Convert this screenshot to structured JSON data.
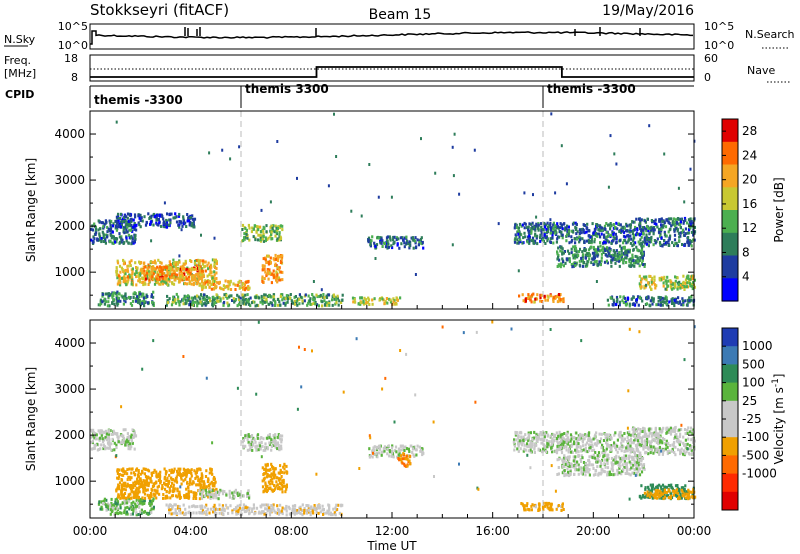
{
  "header": {
    "station": "Stokkseyri (fitACF)",
    "beam": "Beam 15",
    "date": "19/May/2016"
  },
  "noise_panel": {
    "left_label": "N.Sky",
    "right_label": "N.Search",
    "left_ticks": [
      "10^5",
      "10^0"
    ],
    "right_ticks": [
      "10^5",
      "10^0"
    ]
  },
  "freq_panel": {
    "left_label_line1": "Freq.",
    "left_label_line2": "[MHz]",
    "left_ticks": [
      "18",
      "8"
    ],
    "right_label": "Nave",
    "right_ticks": [
      "60",
      "0"
    ]
  },
  "cpid": {
    "label": "CPID",
    "segments": [
      {
        "label": "themis -3300",
        "start_hour": 0
      },
      {
        "label": "themis 3300",
        "start_hour": 6
      },
      {
        "label": "themis -3300",
        "start_hour": 18
      }
    ]
  },
  "colors": {
    "power_scale": [
      "#0000ff",
      "#1e3ca0",
      "#2e7d5a",
      "#4caf50",
      "#c8c832",
      "#f5a623",
      "#ff6a00",
      "#e00000"
    ],
    "velocity_scale": [
      "#1f3cb4",
      "#3c7ab4",
      "#2e8b57",
      "#5ab43c",
      "#c8c8c8",
      "#c8c8c8",
      "#f0a000",
      "#ff6a00",
      "#ff2a00",
      "#e00000"
    ]
  },
  "chart_data": [
    {
      "type": "heatmap",
      "name": "power",
      "ylabel": "Slant Range [km]",
      "xlabel": "",
      "xlim": [
        0,
        24
      ],
      "ylim": [
        200,
        4500
      ],
      "yticks": [
        "1000",
        "2000",
        "3000",
        "4000"
      ],
      "colorbar": {
        "label": "Power [dB]",
        "ticks": [
          "4",
          "8",
          "12",
          "16",
          "20",
          "24",
          "28"
        ],
        "range": [
          0,
          30
        ]
      },
      "regions": [
        {
          "x": [
            0.0,
            1.8
          ],
          "y": [
            1650,
            2150
          ],
          "value": 8
        },
        {
          "x": [
            1.0,
            4.2
          ],
          "y": [
            2000,
            2300
          ],
          "value": 6
        },
        {
          "x": [
            0.3,
            2.5
          ],
          "y": [
            300,
            600
          ],
          "value": 10
        },
        {
          "x": [
            1.0,
            5.0
          ],
          "y": [
            750,
            1300
          ],
          "value": 18
        },
        {
          "x": [
            2.0,
            4.5
          ],
          "y": [
            850,
            1150
          ],
          "value": 22
        },
        {
          "x": [
            4.3,
            6.3
          ],
          "y": [
            650,
            850
          ],
          "value": 20
        },
        {
          "x": [
            3.0,
            10.0
          ],
          "y": [
            300,
            550
          ],
          "value": 12
        },
        {
          "x": [
            6.0,
            7.6
          ],
          "y": [
            1700,
            2050
          ],
          "value": 14
        },
        {
          "x": [
            6.8,
            7.6
          ],
          "y": [
            800,
            1400
          ],
          "value": 22
        },
        {
          "x": [
            10.4,
            12.3
          ],
          "y": [
            330,
            480
          ],
          "value": 16
        },
        {
          "x": [
            11.0,
            13.2
          ],
          "y": [
            1550,
            1800
          ],
          "value": 8
        },
        {
          "x": [
            17.0,
            18.8
          ],
          "y": [
            380,
            560
          ],
          "value": 22
        },
        {
          "x": [
            16.8,
            21.5
          ],
          "y": [
            1650,
            2100
          ],
          "value": 8
        },
        {
          "x": [
            18.5,
            22.0
          ],
          "y": [
            1150,
            1600
          ],
          "value": 10
        },
        {
          "x": [
            21.5,
            24.0
          ],
          "y": [
            1600,
            2200
          ],
          "value": 8
        },
        {
          "x": [
            21.8,
            24.0
          ],
          "y": [
            650,
            950
          ],
          "value": 16
        },
        {
          "x": [
            20.5,
            24.0
          ],
          "y": [
            300,
            500
          ],
          "value": 8
        }
      ]
    },
    {
      "type": "heatmap",
      "name": "velocity",
      "ylabel": "Slant Range [km]",
      "xlabel": "Time UT",
      "xlim": [
        0,
        24
      ],
      "ylim": [
        200,
        4500
      ],
      "xticks": [
        "00:00",
        "04:00",
        "08:00",
        "12:00",
        "16:00",
        "20:00",
        "00:00"
      ],
      "yticks": [
        "1000",
        "2000",
        "3000",
        "4000"
      ],
      "colorbar": {
        "label": "Velocity [m s^-1]",
        "ticks": [
          "1000",
          "500",
          "100",
          "25",
          "-25",
          "-100",
          "-500",
          "-1000"
        ],
        "range": [
          -1200,
          1200
        ]
      },
      "regions": [
        {
          "x": [
            0.0,
            1.8
          ],
          "y": [
            1700,
            2150
          ],
          "value": 0
        },
        {
          "x": [
            0.3,
            2.5
          ],
          "y": [
            300,
            650
          ],
          "value": 60
        },
        {
          "x": [
            1.0,
            5.0
          ],
          "y": [
            650,
            1300
          ],
          "value": -300
        },
        {
          "x": [
            4.3,
            6.3
          ],
          "y": [
            650,
            850
          ],
          "value": 0
        },
        {
          "x": [
            3.0,
            10.0
          ],
          "y": [
            300,
            520
          ],
          "value": -60
        },
        {
          "x": [
            6.0,
            7.6
          ],
          "y": [
            1700,
            2050
          ],
          "value": 0
        },
        {
          "x": [
            6.8,
            7.8
          ],
          "y": [
            800,
            1400
          ],
          "value": -400
        },
        {
          "x": [
            11.0,
            13.2
          ],
          "y": [
            1550,
            1800
          ],
          "value": 0
        },
        {
          "x": [
            12.2,
            12.7
          ],
          "y": [
            1350,
            1650
          ],
          "value": -500
        },
        {
          "x": [
            17.0,
            18.8
          ],
          "y": [
            380,
            560
          ],
          "value": -150
        },
        {
          "x": [
            16.8,
            21.5
          ],
          "y": [
            1650,
            2100
          ],
          "value": 0
        },
        {
          "x": [
            18.5,
            22.0
          ],
          "y": [
            1150,
            1600
          ],
          "value": 0
        },
        {
          "x": [
            21.5,
            24.0
          ],
          "y": [
            1600,
            2200
          ],
          "value": 0
        },
        {
          "x": [
            21.8,
            24.0
          ],
          "y": [
            650,
            950
          ],
          "value": 200
        },
        {
          "x": [
            22.0,
            24.0
          ],
          "y": [
            650,
            850
          ],
          "value": -300
        }
      ]
    }
  ]
}
